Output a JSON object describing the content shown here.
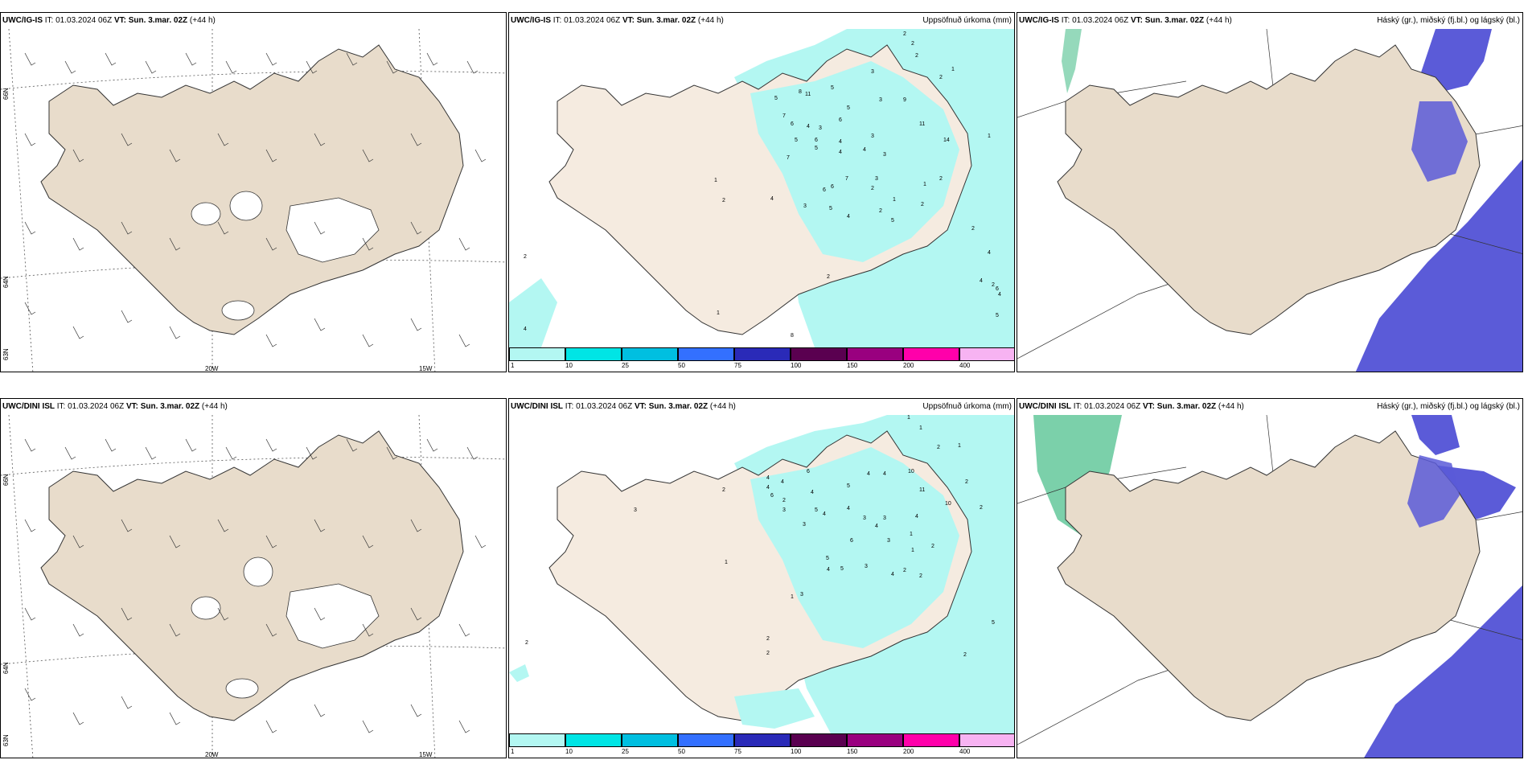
{
  "rows": [
    {
      "model": "UWC/IG-IS",
      "model_alt": "UWC/IG-IS"
    },
    {
      "model": "UWC/DINI ISL",
      "model_alt": "UWC/DINI ISL"
    }
  ],
  "header": {
    "it_prefix": "IT:",
    "it_value": "01.03.2024 06Z",
    "vt_prefix": "VT:",
    "vt_value": "Sun. 3.mar. 02Z",
    "lead": "(+44 h)"
  },
  "titles": {
    "precip": "Uppsöfnuð úrkoma (mm)",
    "clouds": "Háský (gr.), miðský (fj.bl.) og lágský (bl.)"
  },
  "axis_labels": {
    "lat_66": "66N",
    "lat_64": "64N",
    "lat_63": "63N",
    "lon_20": "20W",
    "lon_15": "15W"
  },
  "legend": {
    "ticks": [
      "1",
      "10",
      "25",
      "50",
      "75",
      "100",
      "150",
      "200",
      "400"
    ],
    "colors": [
      "#b3f7f2",
      "#00e5e5",
      "#00bfe0",
      "#3370ff",
      "#2a2ab8",
      "#5a0050",
      "#99007f",
      "#ff00aa",
      "#f7b3f2"
    ]
  },
  "colors": {
    "land": "#efe4d6",
    "precip_light": "#b3f7f2",
    "cloud_blue": "#5b5bd8",
    "cloud_green": "#4fc08d"
  },
  "precip_values_top": [
    "2",
    "2",
    "2",
    "1",
    "2",
    "3",
    "5",
    "3",
    "5",
    "8",
    "11",
    "5",
    "6",
    "9",
    "7",
    "6",
    "4",
    "3",
    "11",
    "5",
    "6",
    "4",
    "3",
    "14",
    "1",
    "5",
    "7",
    "3",
    "4",
    "4",
    "2",
    "7",
    "6",
    "3",
    "1",
    "1",
    "6",
    "2",
    "2",
    "4",
    "3",
    "5",
    "2",
    "1",
    "2",
    "4",
    "2",
    "4",
    "2",
    "5",
    "4",
    "2",
    "6",
    "4",
    "2",
    "1",
    "4",
    "8",
    "5"
  ],
  "precip_values_bottom": [
    "1",
    "1",
    "2",
    "1",
    "10",
    "2",
    "6",
    "4",
    "4",
    "2",
    "4",
    "6",
    "5",
    "4",
    "4",
    "11",
    "4",
    "2",
    "10",
    "2",
    "3",
    "5",
    "4",
    "4",
    "3",
    "3",
    "3",
    "4",
    "4",
    "6",
    "3",
    "1",
    "3",
    "5",
    "2",
    "1",
    "5",
    "4",
    "3",
    "1",
    "2",
    "1",
    "3",
    "4",
    "2",
    "2",
    "2",
    "5",
    "2",
    "2"
  ]
}
